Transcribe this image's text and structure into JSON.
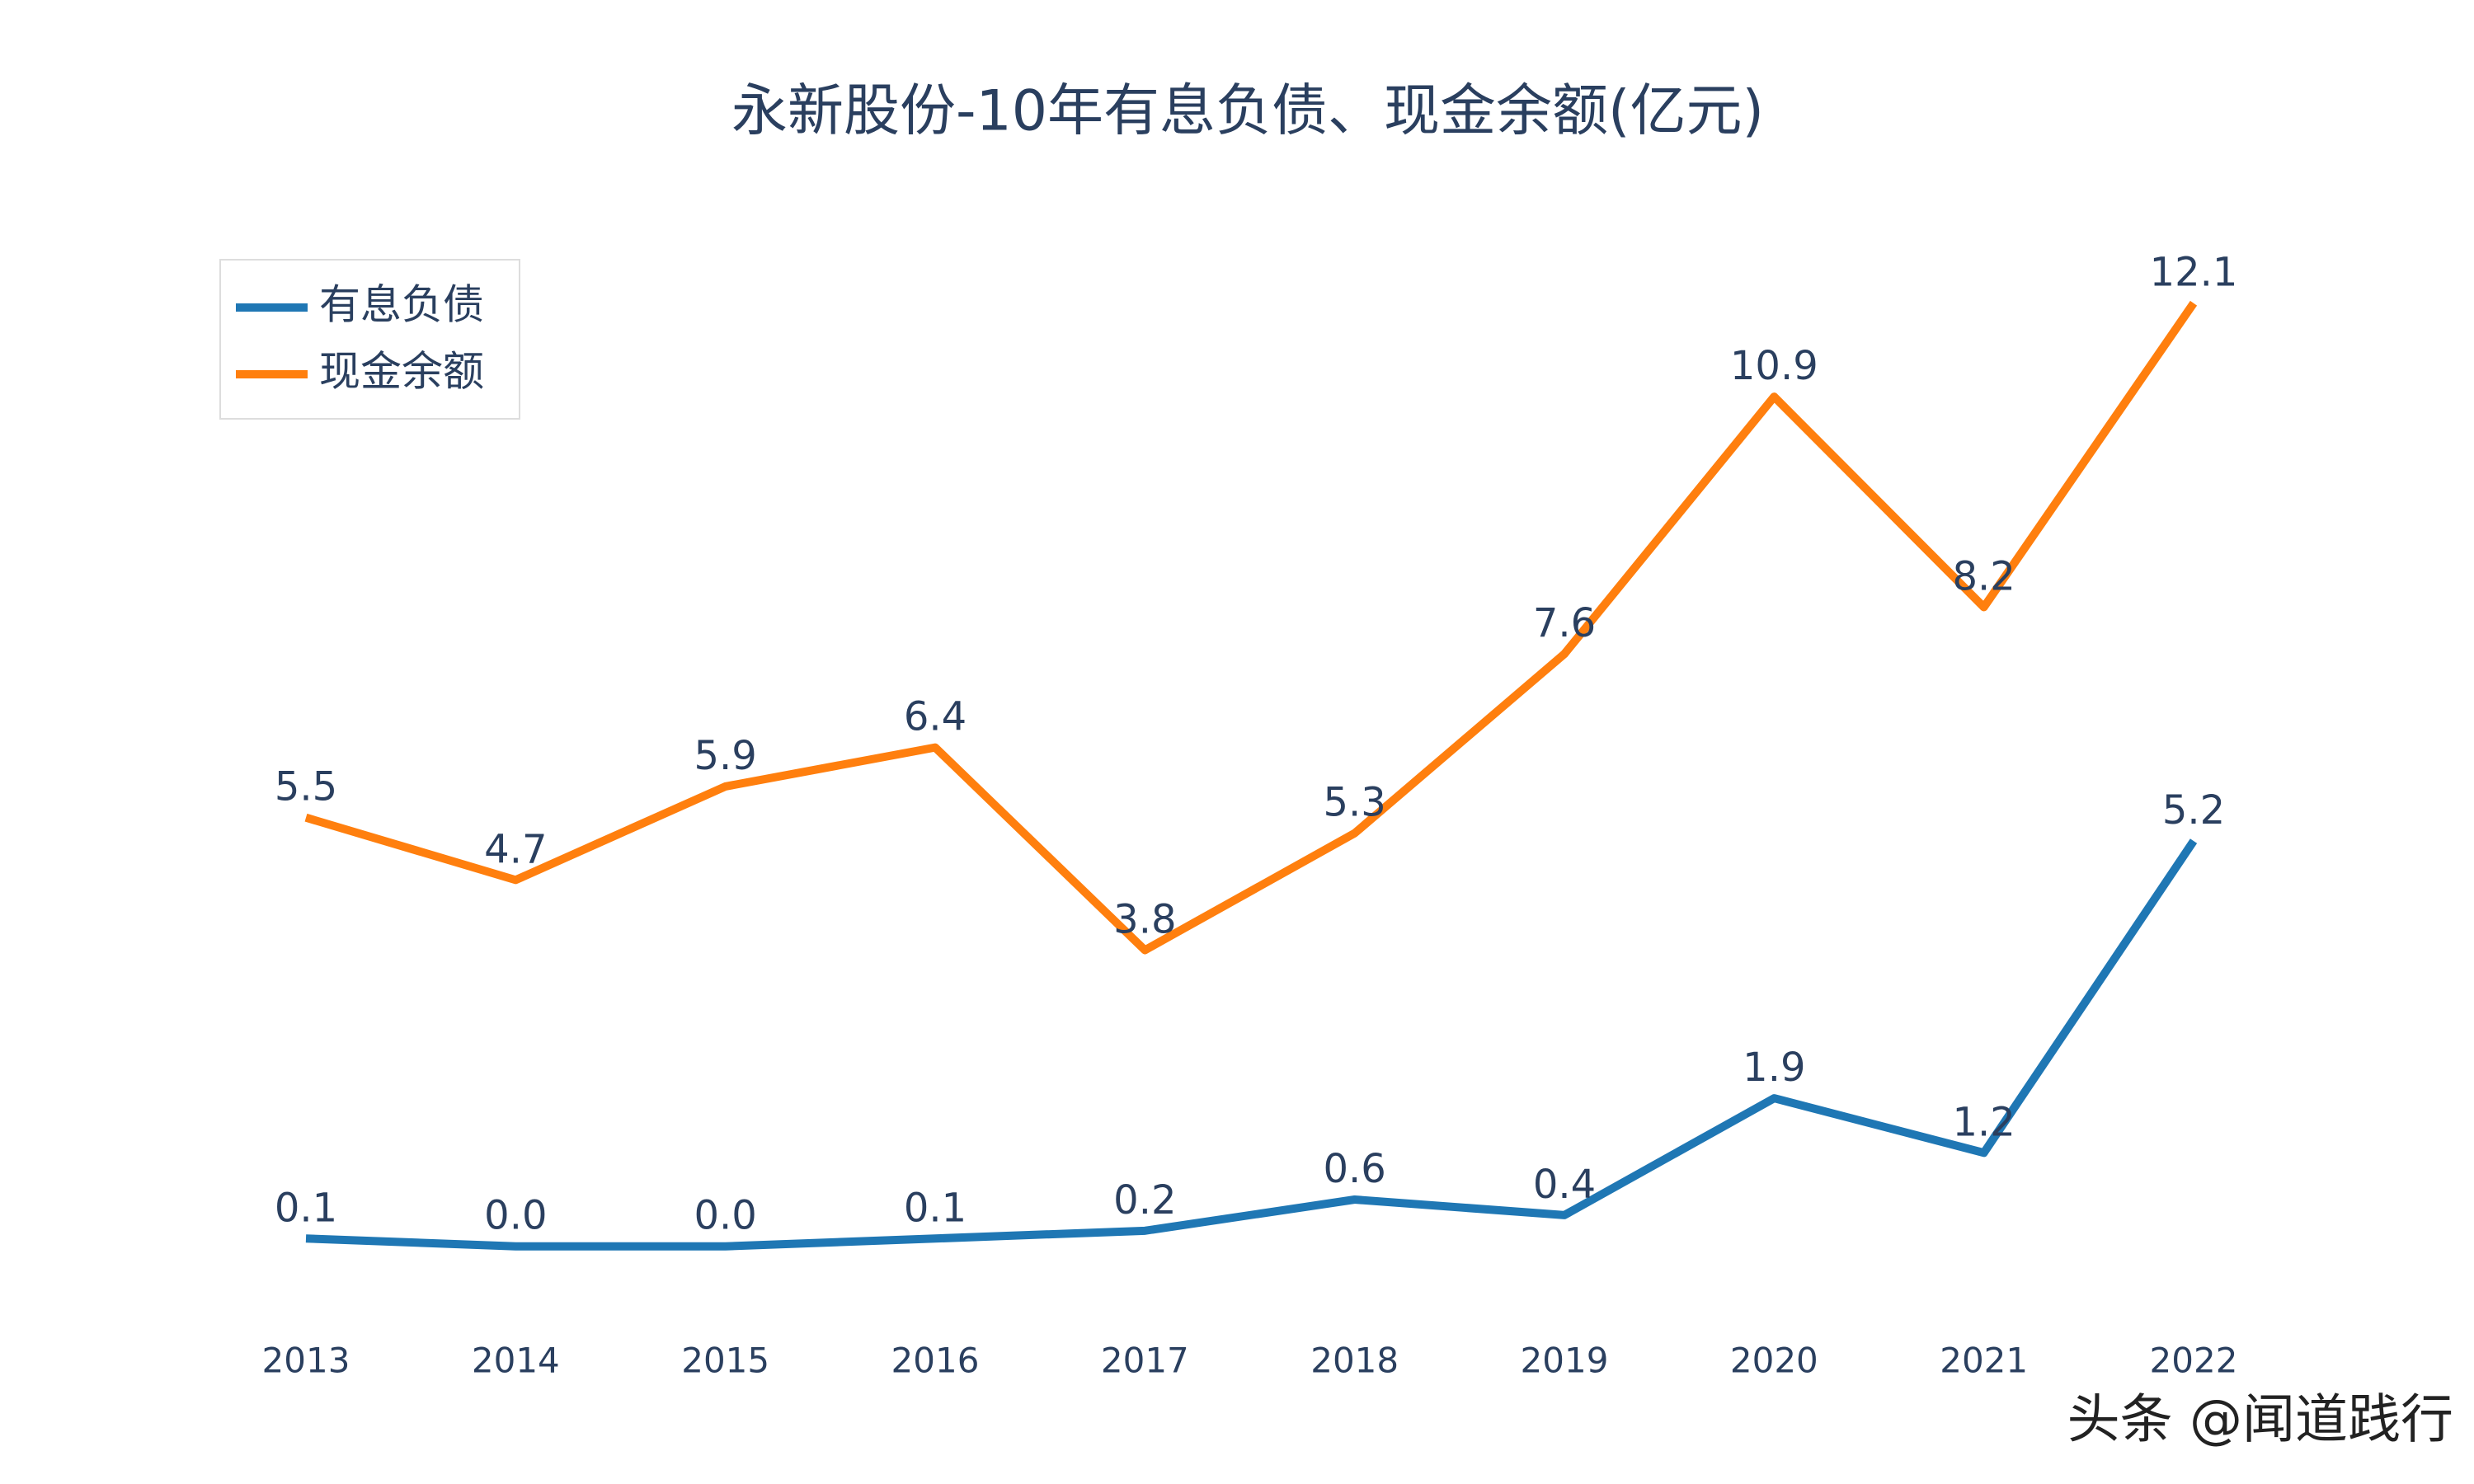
{
  "chart_data": {
    "type": "line",
    "title": "永新股份-10年有息负债、现金余额(亿元)",
    "categories": [
      "2013",
      "2014",
      "2015",
      "2016",
      "2017",
      "2018",
      "2019",
      "2020",
      "2021",
      "2022"
    ],
    "series": [
      {
        "name": "有息负债",
        "color": "#1f77b4",
        "values": [
          0.1,
          0,
          0,
          0.1,
          0.2,
          0.6,
          0.4,
          1.9,
          1.2,
          5.2
        ],
        "value_labels": [
          "0.1",
          "0.0",
          "0.0",
          "0.1",
          "0.2",
          "0.6",
          "0.4",
          "1.9",
          "1.2",
          "5.2"
        ]
      },
      {
        "name": "现金余额",
        "color": "#ff7f0e",
        "values": [
          5.5,
          4.7,
          5.9,
          6.4,
          3.8,
          5.3,
          7.6,
          10.9,
          8.2,
          12.1
        ]
      }
    ],
    "ylim": [
      -0.5,
      12.7
    ],
    "legend": "top-left"
  },
  "watermark": "头条 @闻道践行"
}
